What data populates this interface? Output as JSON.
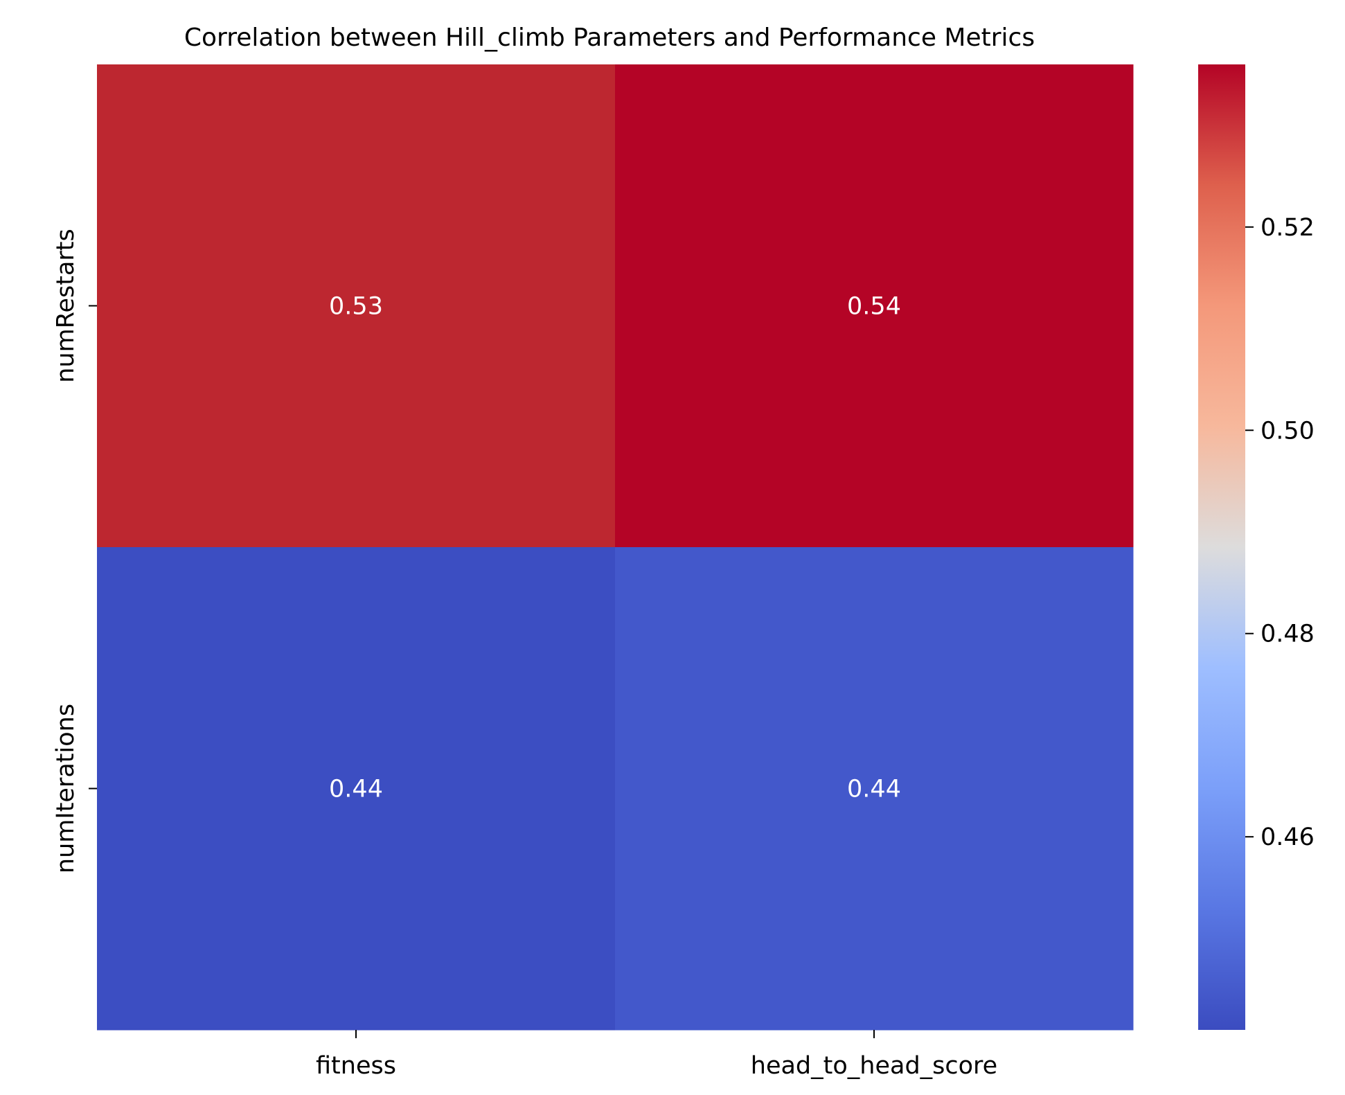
{
  "chart_data": {
    "type": "heatmap",
    "title": "Correlation between Hill_climb Parameters and Performance Metrics",
    "columns": [
      "fitness",
      "head_to_head_score"
    ],
    "rows": [
      "numRestarts",
      "numIterations"
    ],
    "values": [
      [
        0.53,
        0.54
      ],
      [
        0.44,
        0.44
      ]
    ],
    "value_labels": [
      [
        "0.53",
        "0.54"
      ],
      [
        "0.44",
        "0.44"
      ]
    ],
    "colormap": "coolwarm",
    "color_range": [
      0.441,
      0.536
    ],
    "colorbar": {
      "ticks": [
        0.46,
        0.48,
        0.5,
        0.52
      ],
      "tick_labels": [
        "0.46",
        "0.48",
        "0.50",
        "0.52"
      ]
    },
    "cell_colors": [
      [
        "#bd2730",
        "#b40426"
      ],
      [
        "#3c4ec2",
        "#4358cb"
      ]
    ],
    "label_color": "#ffffff"
  }
}
